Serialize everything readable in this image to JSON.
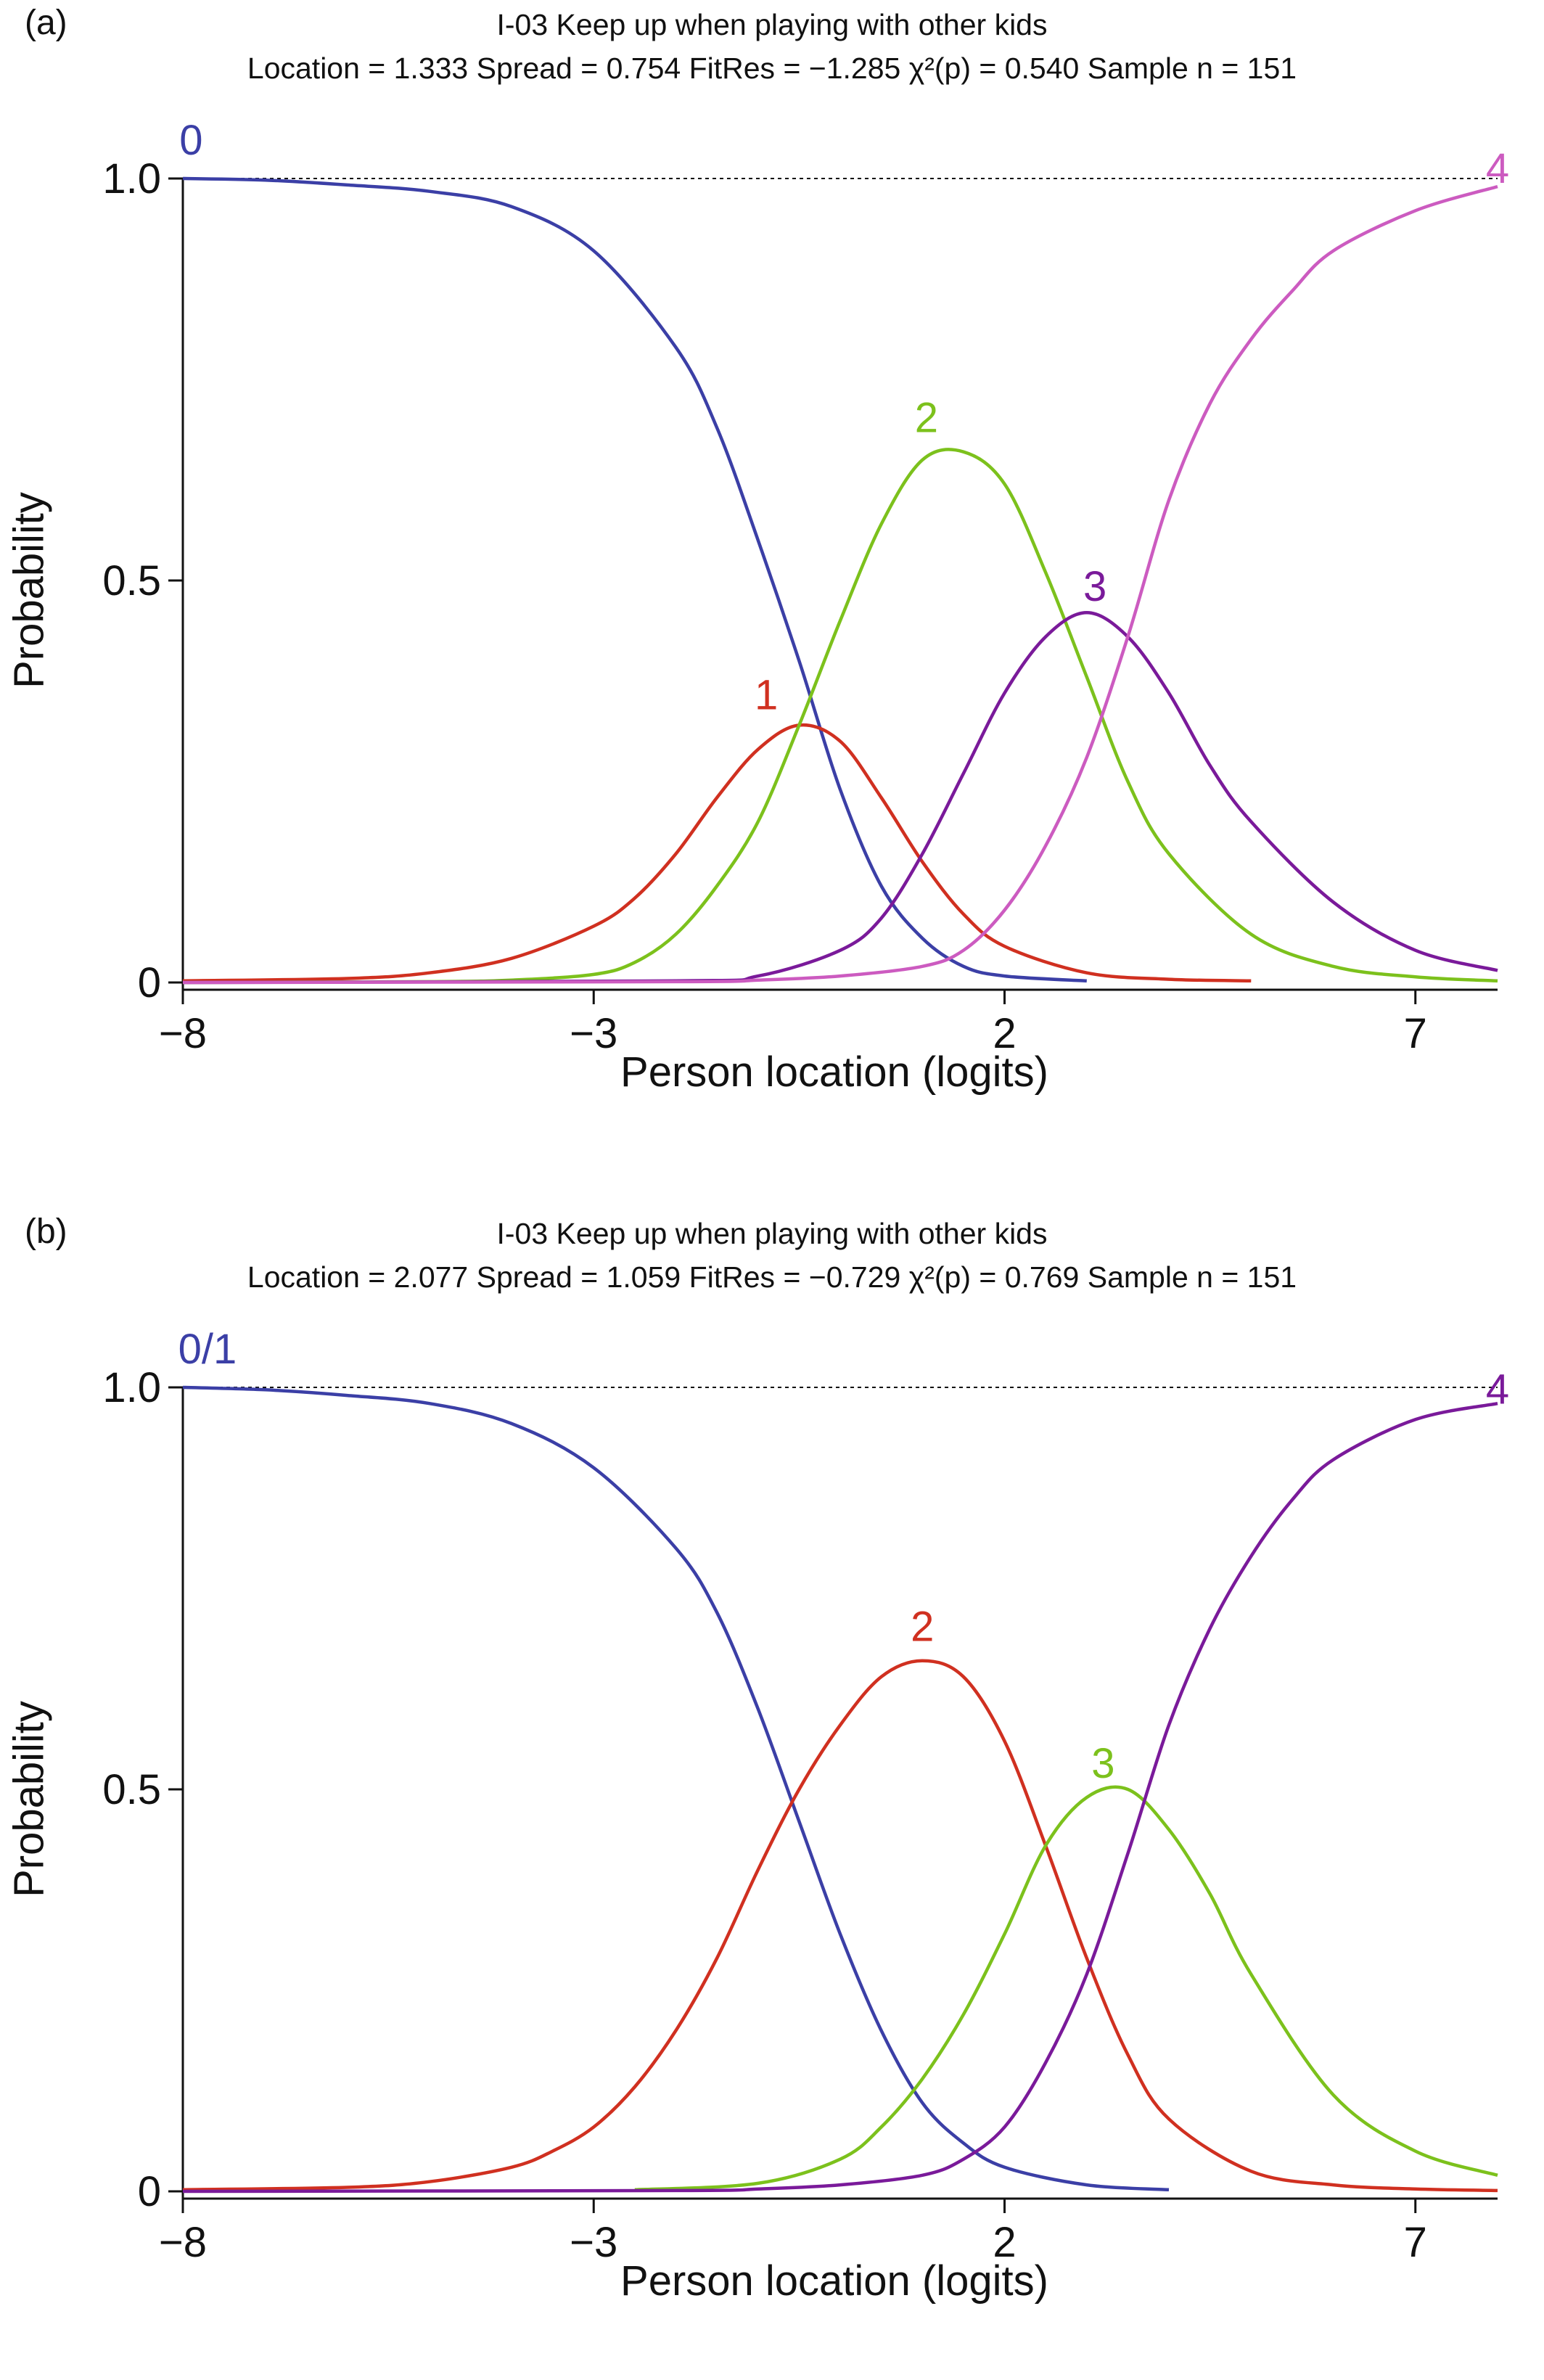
{
  "chart_data": [
    {
      "type": "line",
      "panel_label": "(a)",
      "title": "I-03   Keep up when playing with other kids",
      "subtitle": {
        "location": "Location = 1.333",
        "spread": "Spread = 0.754",
        "fitres": "FitRes = −1.285",
        "chi": "χ²(p) = 0.540",
        "sample": "Sample n = 151"
      },
      "xlabel": "Person location (logits)",
      "ylabel": "Probability",
      "xlim": [
        -8,
        8
      ],
      "ylim": [
        0,
        1
      ],
      "xticks": [
        -8,
        -3,
        2,
        7
      ],
      "xtick_labels": [
        "−8",
        "−3",
        "2",
        "7"
      ],
      "yticks": [
        0,
        0.5,
        1.0
      ],
      "ytick_labels": [
        "0",
        "0.5",
        "1.0"
      ],
      "reference_line": 1.0,
      "series": [
        {
          "name": "0",
          "color": "#3b3fa6",
          "label_at": [
            -7.9,
            1.035
          ],
          "x": [
            -8,
            -7,
            -6,
            -5,
            -4,
            -3,
            -2,
            -1.5,
            -1,
            -0.5,
            0,
            0.5,
            1,
            1.5,
            2,
            3
          ],
          "y": [
            1.0,
            0.998,
            0.992,
            0.984,
            0.965,
            0.91,
            0.79,
            0.69,
            0.55,
            0.4,
            0.24,
            0.12,
            0.055,
            0.02,
            0.008,
            0.002
          ]
        },
        {
          "name": "1",
          "color": "#d03020",
          "label_at": [
            -0.9,
            0.345
          ],
          "x": [
            -8,
            -6,
            -5,
            -4,
            -3,
            -2.5,
            -2,
            -1.5,
            -1,
            -0.5,
            0,
            0.5,
            1,
            1.5,
            2,
            3,
            4,
            5
          ],
          "y": [
            0.002,
            0.005,
            0.012,
            0.03,
            0.07,
            0.105,
            0.16,
            0.23,
            0.29,
            0.32,
            0.3,
            0.23,
            0.15,
            0.085,
            0.045,
            0.012,
            0.004,
            0.002
          ]
        },
        {
          "name": "2",
          "color": "#7cc11c",
          "label_at": [
            1.05,
            0.69
          ],
          "x": [
            -8,
            -5,
            -4,
            -3,
            -2.5,
            -2,
            -1.5,
            -1,
            -0.5,
            0,
            0.5,
            1,
            1.5,
            2,
            2.5,
            3,
            3.5,
            4,
            5,
            6,
            7,
            8
          ],
          "y": [
            0,
            0.001,
            0.003,
            0.01,
            0.025,
            0.06,
            0.12,
            0.2,
            0.32,
            0.45,
            0.57,
            0.65,
            0.66,
            0.62,
            0.51,
            0.38,
            0.25,
            0.16,
            0.06,
            0.02,
            0.007,
            0.002
          ]
        },
        {
          "name": "3",
          "color": "#7a1a9a",
          "label_at": [
            3.1,
            0.48
          ],
          "x": [
            -8,
            -2,
            -1,
            0,
            0.5,
            1,
            1.5,
            2,
            2.5,
            3,
            3.5,
            4,
            4.5,
            5,
            6,
            7,
            8
          ],
          "y": [
            0,
            0.002,
            0.008,
            0.04,
            0.08,
            0.16,
            0.26,
            0.36,
            0.43,
            0.46,
            0.43,
            0.36,
            0.27,
            0.2,
            0.1,
            0.04,
            0.015
          ]
        },
        {
          "name": "4",
          "color": "#cc5bc0",
          "label_at": [
            8.0,
            1.0
          ],
          "x": [
            -8,
            -2,
            -1,
            0,
            1,
            1.5,
            2,
            2.5,
            3,
            3.5,
            4,
            4.5,
            5,
            5.5,
            6,
            7,
            8
          ],
          "y": [
            0,
            0.001,
            0.003,
            0.008,
            0.02,
            0.04,
            0.09,
            0.17,
            0.28,
            0.43,
            0.6,
            0.72,
            0.8,
            0.86,
            0.91,
            0.96,
            0.99
          ]
        }
      ]
    },
    {
      "type": "line",
      "panel_label": "(b)",
      "title": "I-03   Keep up when playing with other kids",
      "subtitle": {
        "location": "Location = 2.077",
        "spread": "Spread = 1.059",
        "fitres": "FitRes = −0.729",
        "chi": "χ²(p) = 0.769",
        "sample": "Sample n = 151"
      },
      "xlabel": "Person location (logits)",
      "ylabel": "Probability",
      "xlim": [
        -8,
        8
      ],
      "ylim": [
        0,
        1
      ],
      "xticks": [
        -8,
        -3,
        2,
        7
      ],
      "xtick_labels": [
        "−8",
        "−3",
        "2",
        "7"
      ],
      "yticks": [
        0,
        0.5,
        1.0
      ],
      "ytick_labels": [
        "0",
        "0.5",
        "1.0"
      ],
      "reference_line": 1.0,
      "series": [
        {
          "name": "0/1",
          "color": "#3b3fa6",
          "label_at": [
            -7.7,
            1.035
          ],
          "x": [
            -8,
            -7,
            -6,
            -5,
            -4,
            -3,
            -2,
            -1.5,
            -1,
            -0.5,
            0,
            0.5,
            1,
            1.5,
            2,
            3,
            4
          ],
          "y": [
            1.0,
            0.997,
            0.99,
            0.98,
            0.955,
            0.9,
            0.8,
            0.72,
            0.6,
            0.46,
            0.32,
            0.2,
            0.11,
            0.06,
            0.03,
            0.008,
            0.002
          ]
        },
        {
          "name": "2",
          "color": "#d03020",
          "label_at": [
            1.0,
            0.69
          ],
          "x": [
            -8,
            -6,
            -5,
            -4,
            -3.5,
            -3,
            -2.5,
            -2,
            -1.5,
            -1,
            -0.5,
            0,
            0.5,
            1,
            1.5,
            2,
            2.5,
            3,
            3.5,
            4,
            5,
            6,
            7,
            8
          ],
          "y": [
            0.002,
            0.005,
            0.012,
            0.03,
            0.05,
            0.08,
            0.13,
            0.2,
            0.29,
            0.4,
            0.5,
            0.58,
            0.64,
            0.66,
            0.64,
            0.56,
            0.43,
            0.29,
            0.17,
            0.09,
            0.025,
            0.008,
            0.003,
            0.001
          ]
        },
        {
          "name": "3",
          "color": "#7cc11c",
          "label_at": [
            3.2,
            0.52
          ],
          "x": [
            -2.5,
            -1,
            0,
            0.5,
            1,
            1.5,
            2,
            2.5,
            3,
            3.5,
            4,
            4.5,
            5,
            6,
            7,
            8
          ],
          "y": [
            0.002,
            0.01,
            0.04,
            0.08,
            0.14,
            0.22,
            0.32,
            0.43,
            0.49,
            0.5,
            0.45,
            0.37,
            0.27,
            0.12,
            0.05,
            0.02
          ]
        },
        {
          "name": "4",
          "color": "#7a1a9a",
          "label_at": [
            8.0,
            0.985
          ],
          "x": [
            -8,
            -2,
            -1,
            0,
            1,
            1.5,
            2,
            2.5,
            3,
            3.5,
            4,
            4.5,
            5,
            5.5,
            6,
            7,
            8
          ],
          "y": [
            0,
            0.001,
            0.003,
            0.008,
            0.02,
            0.04,
            0.08,
            0.16,
            0.27,
            0.42,
            0.58,
            0.7,
            0.79,
            0.86,
            0.91,
            0.96,
            0.98
          ]
        }
      ]
    }
  ]
}
